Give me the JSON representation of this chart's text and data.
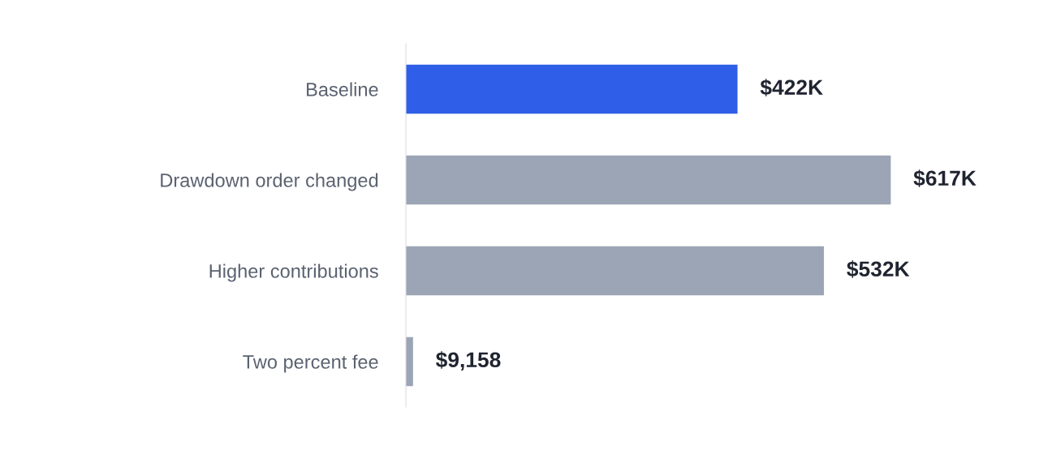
{
  "chart_data": {
    "type": "bar",
    "orientation": "horizontal",
    "categories": [
      "Baseline",
      "Drawdown order changed",
      "Higher contributions",
      "Two percent fee"
    ],
    "values": [
      422000,
      617000,
      532000,
      9158
    ],
    "colors": [
      "#2f5fe8",
      "#9ca5b5",
      "#9ca5b5",
      "#9ca5b5"
    ],
    "value_labels": [
      "$422K",
      "$617K",
      "$532K",
      "$9,158"
    ],
    "grid": false,
    "legend": false,
    "tick_labels": "y"
  }
}
